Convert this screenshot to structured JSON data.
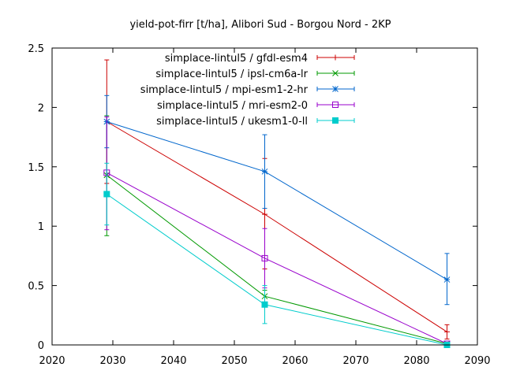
{
  "chart_data": {
    "type": "line",
    "title": "yield-pot-firr [t/ha], Alibori Sud - Borgou Nord - 2KP",
    "xlabel": "",
    "ylabel": "",
    "xlim": [
      2020,
      2090
    ],
    "ylim": [
      0,
      2.5
    ],
    "xticks": [
      2020,
      2030,
      2040,
      2050,
      2060,
      2070,
      2080,
      2090
    ],
    "yticks": [
      0,
      0.5,
      1,
      1.5,
      2,
      2.5
    ],
    "ytick_labels": [
      "0",
      "0.5",
      "1",
      "1.5",
      "2",
      "2.5"
    ],
    "grid": false,
    "legend_position": "top-right",
    "series": [
      {
        "name": "simplace-lintul5 / gfdl-esm4",
        "color": "#cc0000",
        "marker": "plus",
        "x": [
          2029,
          2055,
          2085
        ],
        "y": [
          1.88,
          1.1,
          0.11
        ],
        "err_low": [
          1.36,
          0.64,
          0.05
        ],
        "err_high": [
          2.4,
          1.57,
          0.17
        ]
      },
      {
        "name": "simplace-lintul5 / ipsl-cm6a-lr",
        "color": "#009900",
        "marker": "cross",
        "x": [
          2029,
          2055,
          2085
        ],
        "y": [
          1.43,
          0.41,
          0.01
        ],
        "err_low": [
          0.92,
          0.36,
          0.0
        ],
        "err_high": [
          1.93,
          0.46,
          0.02
        ]
      },
      {
        "name": "simplace-lintul5 / mpi-esm1-2-hr",
        "color": "#0066cc",
        "marker": "star",
        "x": [
          2029,
          2055,
          2085
        ],
        "y": [
          1.88,
          1.46,
          0.55
        ],
        "err_low": [
          1.66,
          1.15,
          0.34
        ],
        "err_high": [
          2.1,
          1.77,
          0.77
        ]
      },
      {
        "name": "simplace-lintul5 / mri-esm2-0",
        "color": "#9900cc",
        "marker": "square-open",
        "x": [
          2029,
          2055,
          2085
        ],
        "y": [
          1.45,
          0.73,
          0.01
        ],
        "err_low": [
          0.97,
          0.48,
          0.0
        ],
        "err_high": [
          1.92,
          0.98,
          0.02
        ]
      },
      {
        "name": "simplace-lintul5 / ukesm1-0-ll",
        "color": "#00cccc",
        "marker": "square-filled",
        "x": [
          2029,
          2055,
          2085
        ],
        "y": [
          1.27,
          0.34,
          0.0
        ],
        "err_low": [
          1.01,
          0.18,
          0.0
        ],
        "err_high": [
          1.53,
          0.5,
          0.01
        ]
      }
    ]
  }
}
